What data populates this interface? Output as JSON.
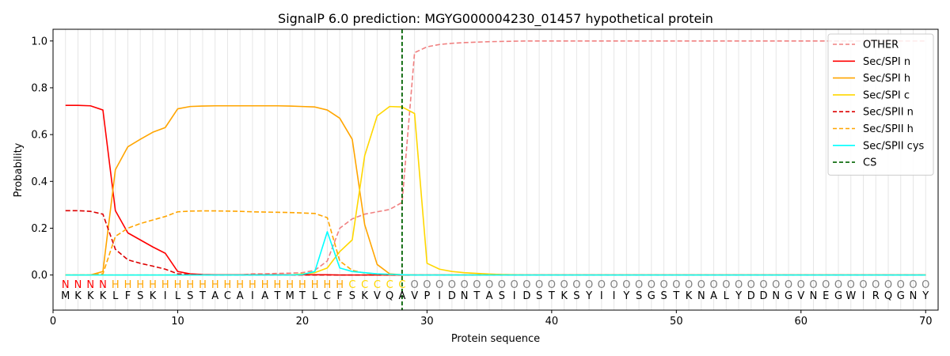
{
  "chart_data": {
    "type": "line",
    "title": "SignalP 6.0 prediction: MGYG000004230_01457 hypothetical protein",
    "xlabel": "Protein sequence",
    "ylabel": "Probability",
    "xlim": [
      0,
      71
    ],
    "ylim": [
      -0.15,
      1.05
    ],
    "x_ticks": [
      0,
      10,
      20,
      30,
      40,
      50,
      60,
      70
    ],
    "y_ticks": [
      0.0,
      0.2,
      0.4,
      0.6,
      0.8,
      1.0
    ],
    "x_tick_labels": [
      "0",
      "10",
      "20",
      "30",
      "40",
      "50",
      "60",
      "70"
    ],
    "y_tick_labels": [
      "0.0",
      "0.2",
      "0.4",
      "0.6",
      "0.8",
      "1.0"
    ],
    "grid": "vertical lines at each residue",
    "legend_position": "top-right",
    "sequence": [
      "M",
      "K",
      "K",
      "K",
      "L",
      "F",
      "S",
      "K",
      "I",
      "L",
      "S",
      "T",
      "A",
      "C",
      "A",
      "I",
      "A",
      "T",
      "M",
      "T",
      "L",
      "C",
      "F",
      "S",
      "K",
      "V",
      "Q",
      "A",
      "V",
      "P",
      "I",
      "D",
      "N",
      "T",
      "A",
      "S",
      "I",
      "D",
      "S",
      "T",
      "K",
      "S",
      "Y",
      "I",
      "I",
      "Y",
      "S",
      "G",
      "S",
      "T",
      "K",
      "N",
      "A",
      "L",
      "Y",
      "D",
      "D",
      "N",
      "G",
      "V",
      "N",
      "E",
      "G",
      "W",
      "I",
      "R",
      "Q",
      "G",
      "N",
      "Y"
    ],
    "region_labels": [
      "N",
      "N",
      "N",
      "N",
      "H",
      "H",
      "H",
      "H",
      "H",
      "H",
      "H",
      "H",
      "H",
      "H",
      "H",
      "H",
      "H",
      "H",
      "H",
      "H",
      "H",
      "H",
      "H",
      "C",
      "C",
      "C",
      "C",
      "C",
      "O",
      "O",
      "O",
      "O",
      "O",
      "O",
      "O",
      "O",
      "O",
      "O",
      "O",
      "O",
      "O",
      "O",
      "O",
      "O",
      "O",
      "O",
      "O",
      "O",
      "O",
      "O",
      "O",
      "O",
      "O",
      "O",
      "O",
      "O",
      "O",
      "O",
      "O",
      "O",
      "O",
      "O",
      "O",
      "O",
      "O",
      "O",
      "O",
      "O",
      "O",
      "O"
    ],
    "region_colors": {
      "N": "#ff0000",
      "H": "#ffa500",
      "C": "#ffd700",
      "O": "#808080"
    },
    "cleavage_site": 28,
    "series": [
      {
        "name": "OTHER",
        "color": "#f08080",
        "dash": "dashed",
        "values": [
          0.0,
          0.0,
          0.0,
          0.0,
          0.0,
          0.0,
          0.0,
          0.0,
          0.0,
          0.0,
          0.0,
          0.0,
          0.0,
          0.0,
          0.0,
          0.005,
          0.005,
          0.007,
          0.008,
          0.01,
          0.02,
          0.06,
          0.2,
          0.24,
          0.26,
          0.27,
          0.28,
          0.31,
          0.95,
          0.975,
          0.985,
          0.99,
          0.993,
          0.995,
          0.997,
          0.998,
          0.999,
          1.0,
          1.0,
          1.0,
          1.0,
          1.0,
          1.0,
          1.0,
          1.0,
          1.0,
          1.0,
          1.0,
          1.0,
          1.0,
          1.0,
          1.0,
          1.0,
          1.0,
          1.0,
          1.0,
          1.0,
          1.0,
          1.0,
          1.0,
          1.0,
          1.0,
          1.0,
          1.0,
          1.0,
          1.0,
          1.0,
          1.0,
          1.0,
          1.0
        ]
      },
      {
        "name": "Sec/SPI n",
        "color": "#ff0000",
        "dash": "solid",
        "values": [
          0.725,
          0.725,
          0.723,
          0.705,
          0.275,
          0.18,
          0.15,
          0.12,
          0.093,
          0.015,
          0.005,
          0.002,
          0.001,
          0.001,
          0.001,
          0.001,
          0.001,
          0.001,
          0.001,
          0.001,
          0.001,
          0.001,
          0.0,
          0.0,
          0.0,
          0.0,
          0.0,
          0.0,
          0.0,
          0.0,
          0.0,
          0.0,
          0.0,
          0.0,
          0.0,
          0.0,
          0.0,
          0.0,
          0.0,
          0.0,
          0.0,
          0.0,
          0.0,
          0.0,
          0.0,
          0.0,
          0.0,
          0.0,
          0.0,
          0.0,
          0.0,
          0.0,
          0.0,
          0.0,
          0.0,
          0.0,
          0.0,
          0.0,
          0.0,
          0.0,
          0.0,
          0.0,
          0.0,
          0.0,
          0.0,
          0.0,
          0.0,
          0.0,
          0.0,
          0.0
        ]
      },
      {
        "name": "Sec/SPI h",
        "color": "#ffa500",
        "dash": "solid",
        "values": [
          0.0,
          0.0,
          0.0,
          0.015,
          0.45,
          0.548,
          0.58,
          0.61,
          0.63,
          0.71,
          0.72,
          0.722,
          0.723,
          0.723,
          0.723,
          0.723,
          0.723,
          0.723,
          0.722,
          0.72,
          0.718,
          0.705,
          0.67,
          0.58,
          0.215,
          0.045,
          0.005,
          0.001,
          0.0,
          0.0,
          0.0,
          0.0,
          0.0,
          0.0,
          0.0,
          0.0,
          0.0,
          0.0,
          0.0,
          0.0,
          0.0,
          0.0,
          0.0,
          0.0,
          0.0,
          0.0,
          0.0,
          0.0,
          0.0,
          0.0,
          0.0,
          0.0,
          0.0,
          0.0,
          0.0,
          0.0,
          0.0,
          0.0,
          0.0,
          0.0,
          0.0,
          0.0,
          0.0,
          0.0,
          0.0,
          0.0,
          0.0,
          0.0,
          0.0,
          0.0
        ]
      },
      {
        "name": "Sec/SPI c",
        "color": "#ffd700",
        "dash": "solid",
        "values": [
          0.0,
          0.0,
          0.0,
          0.0,
          0.0,
          0.0,
          0.0,
          0.0,
          0.0,
          0.0,
          0.0,
          0.0,
          0.0,
          0.0,
          0.0,
          0.0,
          0.0,
          0.0,
          0.0,
          0.005,
          0.01,
          0.03,
          0.1,
          0.15,
          0.51,
          0.68,
          0.72,
          0.718,
          0.69,
          0.05,
          0.025,
          0.015,
          0.01,
          0.007,
          0.004,
          0.002,
          0.001,
          0.0,
          0.0,
          0.0,
          0.0,
          0.0,
          0.0,
          0.0,
          0.0,
          0.0,
          0.0,
          0.0,
          0.0,
          0.0,
          0.0,
          0.0,
          0.0,
          0.0,
          0.0,
          0.0,
          0.0,
          0.0,
          0.0,
          0.0,
          0.0,
          0.0,
          0.0,
          0.0,
          0.0,
          0.0,
          0.0,
          0.0,
          0.0,
          0.0
        ]
      },
      {
        "name": "Sec/SPII n",
        "color": "#dd0000",
        "dash": "dashed",
        "values": [
          0.275,
          0.275,
          0.272,
          0.26,
          0.11,
          0.065,
          0.05,
          0.038,
          0.025,
          0.005,
          0.002,
          0.001,
          0.0,
          0.0,
          0.0,
          0.0,
          0.0,
          0.0,
          0.0,
          0.0,
          0.0,
          0.0,
          0.0,
          0.0,
          0.0,
          0.0,
          0.0,
          0.0,
          0.0,
          0.0,
          0.0,
          0.0,
          0.0,
          0.0,
          0.0,
          0.0,
          0.0,
          0.0,
          0.0,
          0.0,
          0.0,
          0.0,
          0.0,
          0.0,
          0.0,
          0.0,
          0.0,
          0.0,
          0.0,
          0.0,
          0.0,
          0.0,
          0.0,
          0.0,
          0.0,
          0.0,
          0.0,
          0.0,
          0.0,
          0.0,
          0.0,
          0.0,
          0.0,
          0.0,
          0.0,
          0.0,
          0.0,
          0.0,
          0.0,
          0.0
        ]
      },
      {
        "name": "Sec/SPII h",
        "color": "#ffa500",
        "dash": "dashed",
        "values": [
          0.0,
          0.0,
          0.0,
          0.005,
          0.165,
          0.2,
          0.22,
          0.235,
          0.25,
          0.27,
          0.273,
          0.274,
          0.274,
          0.273,
          0.272,
          0.27,
          0.269,
          0.268,
          0.267,
          0.265,
          0.263,
          0.245,
          0.06,
          0.02,
          0.008,
          0.004,
          0.002,
          0.001,
          0.0,
          0.0,
          0.0,
          0.0,
          0.0,
          0.0,
          0.0,
          0.0,
          0.0,
          0.0,
          0.0,
          0.0,
          0.0,
          0.0,
          0.0,
          0.0,
          0.0,
          0.0,
          0.0,
          0.0,
          0.0,
          0.0,
          0.0,
          0.0,
          0.0,
          0.0,
          0.0,
          0.0,
          0.0,
          0.0,
          0.0,
          0.0,
          0.0,
          0.0,
          0.0,
          0.0,
          0.0,
          0.0,
          0.0,
          0.0,
          0.0,
          0.0
        ]
      },
      {
        "name": "Sec/SPII cys",
        "color": "#00ffff",
        "dash": "solid",
        "values": [
          0.0,
          0.0,
          0.0,
          0.0,
          0.0,
          0.0,
          0.0,
          0.0,
          0.0,
          0.0,
          0.0,
          0.0,
          0.0,
          0.0,
          0.0,
          0.0,
          0.0,
          0.0,
          0.0,
          0.002,
          0.015,
          0.185,
          0.03,
          0.015,
          0.01,
          0.005,
          0.003,
          0.001,
          0.0,
          0.0,
          0.0,
          0.0,
          0.0,
          0.0,
          0.0,
          0.0,
          0.0,
          0.0,
          0.0,
          0.0,
          0.0,
          0.0,
          0.0,
          0.0,
          0.0,
          0.0,
          0.0,
          0.0,
          0.0,
          0.0,
          0.0,
          0.0,
          0.0,
          0.0,
          0.0,
          0.0,
          0.0,
          0.0,
          0.0,
          0.0,
          0.0,
          0.0,
          0.0,
          0.0,
          0.0,
          0.0,
          0.0,
          0.0,
          0.0,
          0.0
        ]
      }
    ],
    "cs_line": {
      "name": "CS",
      "color": "#006400",
      "dash": "dashed"
    }
  }
}
